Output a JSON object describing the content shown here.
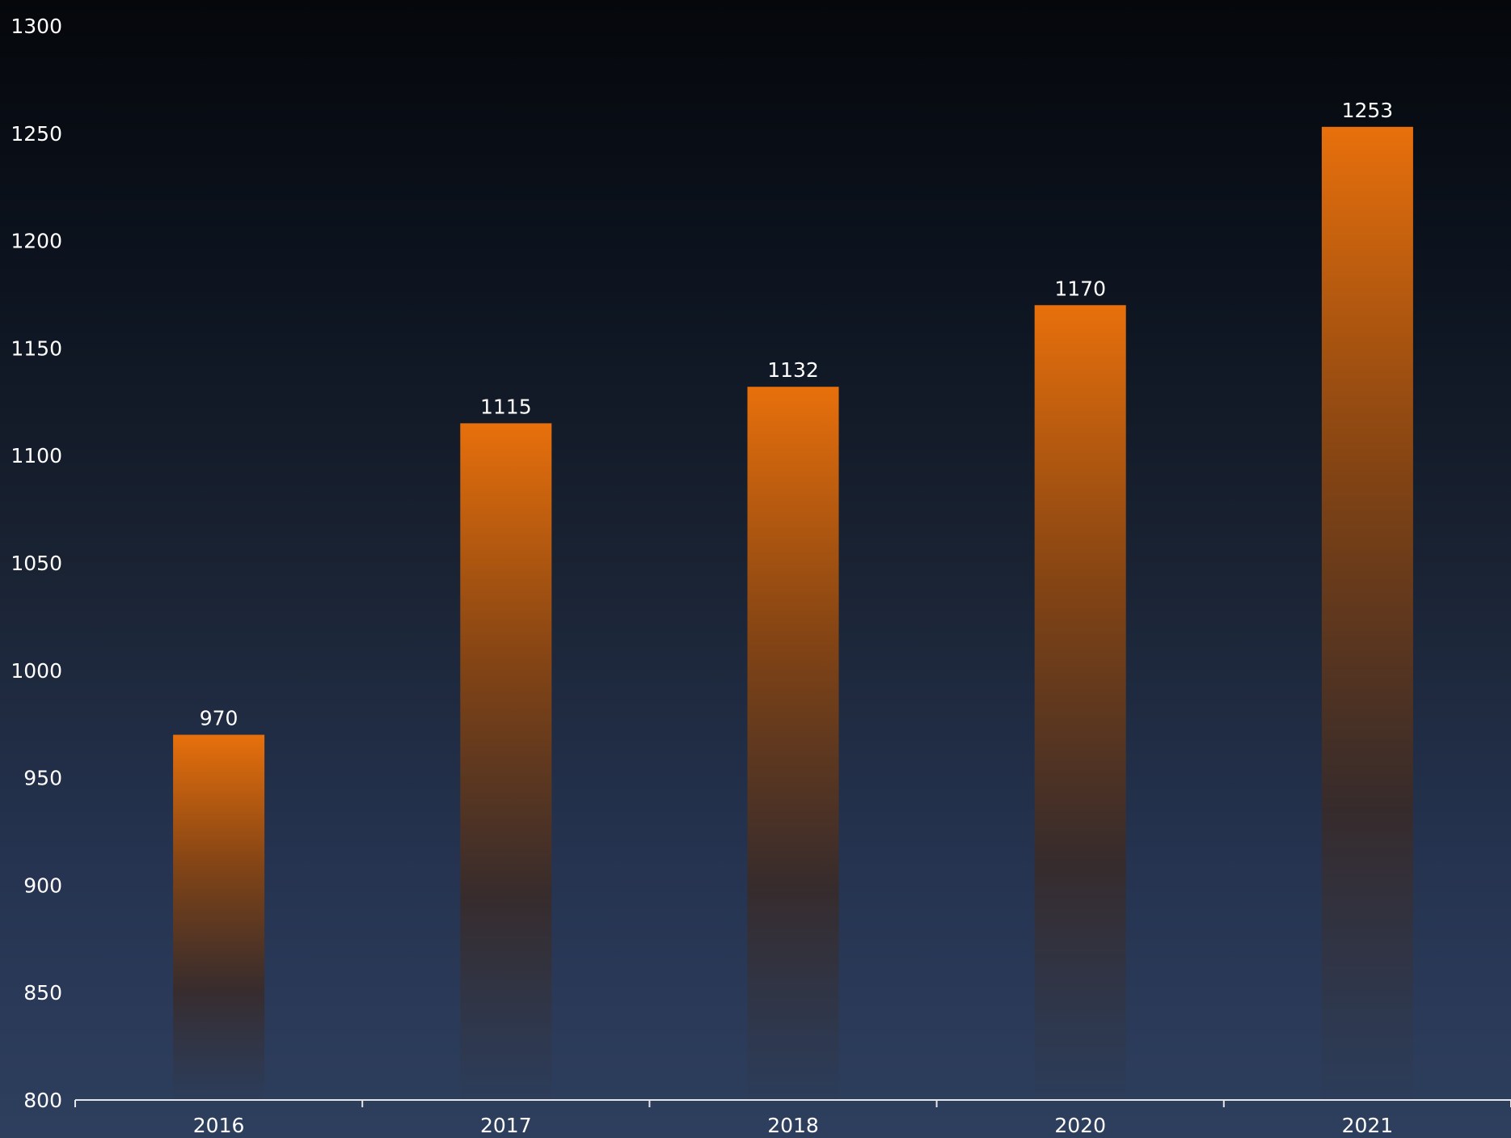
{
  "chart_data": {
    "type": "bar",
    "categories": [
      "2016",
      "2017",
      "2018",
      "2020",
      "2021"
    ],
    "values": [
      970,
      1115,
      1132,
      1170,
      1253
    ],
    "title": "",
    "xlabel": "",
    "ylabel": "",
    "ylim": [
      800,
      1300
    ],
    "yticks": [
      800,
      850,
      900,
      950,
      1000,
      1050,
      1100,
      1150,
      1200,
      1250,
      1300
    ],
    "grid": false,
    "legend": "none",
    "colors": {
      "bar_top": "#e8700c",
      "bar_bottom": "#2c3c58",
      "axis": "#e6e6e6",
      "text": "#ffffff"
    }
  }
}
